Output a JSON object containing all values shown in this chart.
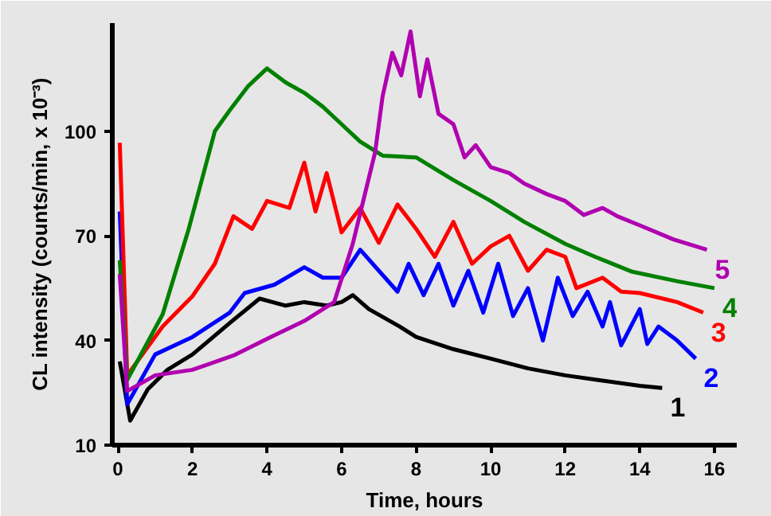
{
  "chart_data": {
    "type": "line",
    "xlabel": "Time, hours",
    "ylabel": "CL intensity (counts/min, x 10⁻³)",
    "xlim": [
      -0.15,
      16.6
    ],
    "ylim": [
      10,
      131
    ],
    "xticks": [
      0,
      2,
      4,
      6,
      8,
      10,
      12,
      14,
      16
    ],
    "yticks": [
      10,
      40,
      70,
      100
    ],
    "marker": "none",
    "line_style": "solid",
    "series": [
      {
        "name": "1",
        "color": "#000000",
        "x": [
          0.05,
          0.33,
          0.8,
          1.33,
          2.0,
          3.0,
          3.8,
          4.5,
          5.0,
          5.6,
          6.0,
          6.3,
          6.73,
          7.56,
          8.0,
          9.0,
          10.0,
          11.0,
          12.0,
          13.0,
          14.0,
          14.6
        ],
        "values": [
          34,
          17,
          26,
          31.6,
          36,
          45,
          52,
          50,
          51,
          50,
          51,
          53,
          49,
          44,
          41,
          37.5,
          34.8,
          32,
          30,
          28.5,
          27,
          26.4
        ]
      },
      {
        "name": "2",
        "color": "#0000ff",
        "x": [
          0.05,
          0.25,
          1.0,
          2.0,
          3.0,
          3.4,
          4.2,
          5.0,
          5.5,
          6.0,
          6.5,
          7.0,
          7.5,
          7.8,
          8.2,
          8.6,
          9.0,
          9.4,
          9.8,
          10.2,
          10.6,
          11.0,
          11.4,
          11.8,
          12.2,
          12.6,
          13.0,
          13.2,
          13.5,
          14.0,
          14.2,
          14.5,
          15.0,
          15.5
        ],
        "values": [
          77,
          21.7,
          36,
          41,
          48,
          53.6,
          56,
          61,
          58,
          58,
          66,
          60,
          54,
          62,
          53,
          62,
          50,
          60,
          48,
          62,
          47,
          55,
          40,
          58,
          47,
          54,
          44,
          51,
          38.6,
          49,
          39,
          44,
          40,
          34.8
        ]
      },
      {
        "name": "3",
        "color": "#ff0000",
        "x": [
          0.05,
          0.25,
          1.2,
          2.0,
          2.6,
          3.1,
          3.6,
          4.0,
          4.6,
          5.0,
          5.3,
          5.6,
          6.0,
          6.5,
          7.0,
          7.5,
          8.0,
          8.5,
          9.0,
          9.5,
          10.0,
          10.5,
          11.0,
          11.5,
          12.0,
          12.3,
          13.0,
          13.5,
          14.0,
          15.0,
          15.7
        ],
        "values": [
          96.7,
          30,
          44,
          52.7,
          62,
          75.6,
          72,
          80,
          78,
          91,
          77,
          88,
          71,
          78,
          68,
          79,
          72,
          64,
          74,
          62,
          67,
          70,
          60,
          66,
          64,
          55,
          58,
          54,
          53.6,
          51,
          48
        ]
      },
      {
        "name": "4",
        "color": "#008000",
        "x": [
          0.05,
          0.25,
          1.2,
          1.9,
          2.6,
          3.0,
          3.5,
          4.0,
          4.5,
          5.0,
          5.5,
          6.0,
          6.5,
          7.1,
          8.0,
          9.0,
          10.0,
          10.9,
          12.0,
          12.8,
          13.8,
          15.0,
          16.0
        ],
        "values": [
          63,
          28.7,
          47.5,
          72,
          100,
          106,
          113,
          118,
          114,
          111,
          107,
          102,
          97,
          93,
          92.5,
          86,
          80,
          74,
          67.7,
          64,
          59.7,
          57,
          55
        ]
      },
      {
        "name": "5",
        "color": "#b000b0",
        "x": [
          0.05,
          0.25,
          1.0,
          2.0,
          3.1,
          4.1,
          5.0,
          5.8,
          6.3,
          6.9,
          7.1,
          7.36,
          7.6,
          7.85,
          8.1,
          8.3,
          8.6,
          9.0,
          9.3,
          9.6,
          10.0,
          10.5,
          10.9,
          11.5,
          12.0,
          12.5,
          13.0,
          13.4,
          14.0,
          14.9,
          15.8
        ],
        "values": [
          59,
          25.5,
          30,
          31.6,
          35.7,
          41,
          45.6,
          51,
          67.7,
          94,
          110,
          122.5,
          116,
          128.6,
          110,
          120.6,
          105,
          102,
          92.5,
          96,
          89.7,
          88,
          85,
          82,
          80,
          76,
          78,
          75.6,
          73,
          69,
          66
        ]
      }
    ]
  }
}
